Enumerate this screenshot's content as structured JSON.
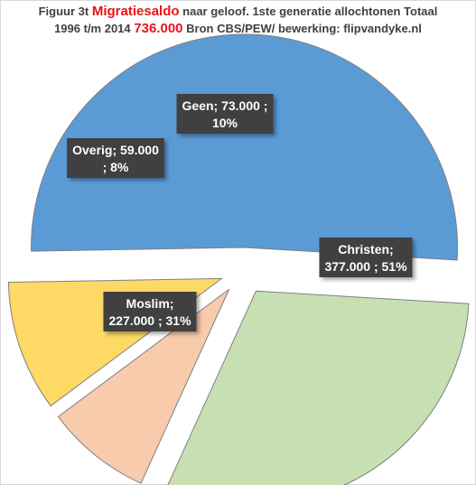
{
  "title": {
    "prefix": "Figuur 3t",
    "highlight": "Migratiesaldo",
    "line1_rest": "naar geloof. 1ste generatie allochtonen  Totaal",
    "period": "1996 t/m 2014",
    "total": "736.000",
    "source": "Bron CBS/PEW/ bewerking: flipvandyke.nl"
  },
  "chart_data": {
    "type": "pie",
    "exploded": true,
    "legend": "none",
    "slices": [
      {
        "name": "Christen",
        "value": 377000,
        "percent": 51,
        "color": "#5b9bd5",
        "label_line1": "Christen;",
        "label_line2": "377.000 ; 51%"
      },
      {
        "name": "Moslim",
        "value": 227000,
        "percent": 31,
        "color": "#c6e0b4",
        "label_line1": "Moslim;",
        "label_line2": "227.000 ; 31%"
      },
      {
        "name": "Overig",
        "value": 59000,
        "percent": 8,
        "color": "#f8cbad",
        "label_line1": "Overig;  59.000",
        "label_line2": "; 8%"
      },
      {
        "name": "Geen",
        "value": 73000,
        "percent": 10,
        "color": "#ffd966",
        "label_line1": "Geen;  73.000 ;",
        "label_line2": "10%"
      }
    ]
  }
}
